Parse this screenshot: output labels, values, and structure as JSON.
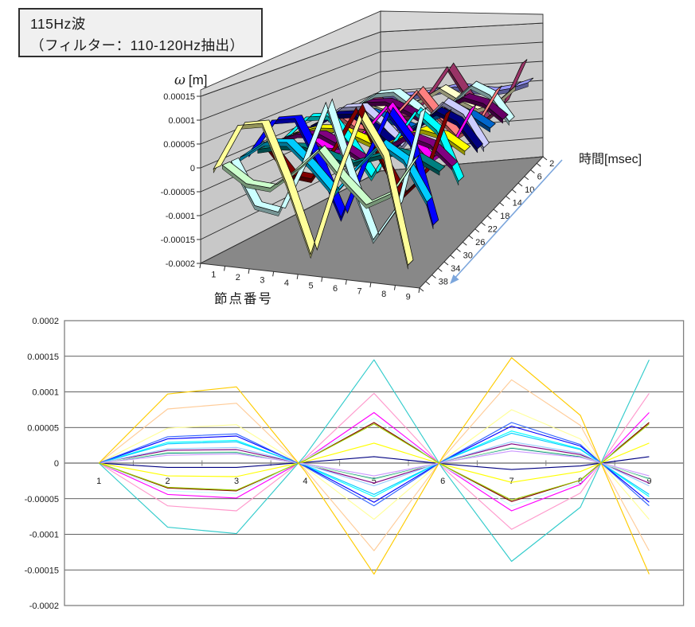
{
  "title_box": {
    "line1": "115Hz波",
    "line2": "（フィルター：110-120Hz抽出）"
  },
  "chart_data": {
    "charts": [
      {
        "id": "wave-3d",
        "type": "3d-line",
        "value_axis_label": "ω[m]",
        "category_axis_label": "節点番号",
        "series_axis_label": "時間[msec]",
        "value_lim": [
          -0.0002,
          0.00015
        ],
        "value_tick_labels": [
          "0.00015",
          "0.0001",
          "0.00005",
          "0",
          "-0.00005",
          "-0.0001",
          "-0.00015",
          "-0.0002"
        ],
        "category_tick_labels": [
          "1",
          "2",
          "3",
          "4",
          "5",
          "6",
          "7",
          "8",
          "9"
        ],
        "series_tick_labels": [
          "2",
          "6",
          "10",
          "14",
          "18",
          "22",
          "26",
          "30",
          "34",
          "38"
        ],
        "grid": true,
        "legend": "none"
      },
      {
        "id": "wave-2d",
        "type": "line",
        "value_lim": [
          -0.0002,
          0.0002
        ],
        "value_tick_labels": [
          "0.0002",
          "0.00015",
          "0.0001",
          "0.00005",
          "0",
          "-0.00005",
          "-0.0001",
          "-0.00015",
          "-0.0002"
        ],
        "category_tick_labels": [
          "1",
          "2",
          "3",
          "4",
          "5",
          "6",
          "7",
          "8",
          "9"
        ],
        "grid": true,
        "legend": "none"
      }
    ],
    "categories": [
      1,
      2,
      3,
      4,
      5,
      6,
      7,
      8,
      9
    ],
    "series_time_unit": "msec",
    "series": [
      {
        "time": 2,
        "line_color": "#000080",
        "fill_color": "#9999FF",
        "values": [
          0,
          -6e-06,
          -6e-06,
          1e-06,
          9e-06,
          -1e-06,
          -9e-06,
          -4e-06,
          9e-06
        ]
      },
      {
        "time": 4,
        "line_color": "#FF00FF",
        "fill_color": "#993366",
        "values": [
          0,
          -4.4e-05,
          -4.9e-05,
          5e-06,
          7.1e-05,
          -4e-06,
          -6.7e-05,
          -3e-05,
          7.1e-05
        ]
      },
      {
        "time": 6,
        "line_color": "#FFFF00",
        "fill_color": "#FFFFCC",
        "values": [
          0,
          -1.8e-05,
          -1.9e-05,
          2e-06,
          2.8e-05,
          -2e-06,
          -2.7e-05,
          -1.2e-05,
          2.8e-05
        ]
      },
      {
        "time": 8,
        "line_color": "#00FFFF",
        "fill_color": "#CCFFFF",
        "values": [
          0,
          2.9e-05,
          3.2e-05,
          -4e-06,
          -4.7e-05,
          3e-06,
          4.5e-05,
          2e-05,
          -4.7e-05
        ]
      },
      {
        "time": 10,
        "line_color": "#800080",
        "fill_color": "#660066",
        "values": [
          0,
          1.8e-05,
          1.9e-05,
          -2e-06,
          -2.8e-05,
          2e-06,
          2.7e-05,
          1.2e-05,
          -2.8e-05
        ]
      },
      {
        "time": 12,
        "line_color": "#800000",
        "fill_color": "#FF8080",
        "values": [
          0,
          -3.5e-05,
          -3.9e-05,
          4e-06,
          5.7e-05,
          -3e-06,
          -5.4e-05,
          -2.4e-05,
          5.7e-05
        ]
      },
      {
        "time": 14,
        "line_color": "#008080",
        "fill_color": "#0066CC",
        "values": [
          0,
          1.4e-05,
          1.5e-05,
          -2e-06,
          -2.2e-05,
          1e-06,
          2.1e-05,
          9e-06,
          -2.2e-05
        ]
      },
      {
        "time": 16,
        "line_color": "#0000FF",
        "fill_color": "#CCCCFF",
        "values": [
          0,
          3.4e-05,
          3.8e-05,
          -4e-06,
          -5.5e-05,
          3e-06,
          5.2e-05,
          2.4e-05,
          -5.5e-05
        ]
      },
      {
        "time": 18,
        "line_color": "#00CCFF",
        "fill_color": "#000080",
        "values": [
          0,
          2.7e-05,
          3e-05,
          -3e-06,
          -4.4e-05,
          3e-06,
          4.2e-05,
          1.9e-05,
          -4.4e-05
        ]
      },
      {
        "time": 20,
        "line_color": "#CCFFFF",
        "fill_color": "#FF00FF",
        "values": [
          0,
          -3.9e-05,
          -4.3e-05,
          5e-06,
          6.3e-05,
          -4e-06,
          -6e-05,
          -2.7e-05,
          6.3e-05
        ]
      },
      {
        "time": 22,
        "line_color": "#CCFFCC",
        "fill_color": "#FFFF00",
        "values": [
          0,
          1.5e-05,
          1.6e-05,
          -2e-06,
          -2.3e-05,
          1e-06,
          2.2e-05,
          1e-05,
          -2.3e-05
        ]
      },
      {
        "time": 24,
        "line_color": "#FFFF99",
        "fill_color": "#00FFFF",
        "values": [
          0,
          4.9e-05,
          5.4e-05,
          -6e-06,
          -7.9e-05,
          4e-06,
          7.5e-05,
          3.4e-05,
          -7.9e-05
        ]
      },
      {
        "time": 26,
        "line_color": "#99CCFF",
        "fill_color": "#800080",
        "values": [
          0,
          2e-05,
          2.2e-05,
          -2e-06,
          -3.2e-05,
          2e-06,
          3e-05,
          1.4e-05,
          -3.2e-05
        ]
      },
      {
        "time": 28,
        "line_color": "#FF99CC",
        "fill_color": "#800000",
        "values": [
          0,
          -6e-05,
          -6.7e-05,
          7e-06,
          9.8e-05,
          -6e-06,
          -9.3e-05,
          -4.2e-05,
          9.8e-05
        ]
      },
      {
        "time": 30,
        "line_color": "#CC99FF",
        "fill_color": "#008080",
        "values": [
          0,
          1.1e-05,
          1.3e-05,
          -1e-06,
          -1.8e-05,
          1e-06,
          1.7e-05,
          8e-06,
          -1.8e-05
        ]
      },
      {
        "time": 32,
        "line_color": "#FFCC99",
        "fill_color": "#0000FF",
        "values": [
          0,
          7.6e-05,
          8.4e-05,
          -9e-06,
          -0.000123,
          7e-06,
          0.000117,
          5.3e-05,
          -0.000123
        ]
      },
      {
        "time": 34,
        "line_color": "#3366FF",
        "fill_color": "#00CCFF",
        "values": [
          0,
          3.7e-05,
          4.1e-05,
          -5e-06,
          -6e-05,
          3e-06,
          5.7e-05,
          2.6e-05,
          -6e-05
        ]
      },
      {
        "time": 36,
        "line_color": "#33CCCC",
        "fill_color": "#CCFFFF",
        "values": [
          0,
          -9e-05,
          -9.9e-05,
          1.1e-05,
          0.000145,
          -8e-06,
          -0.000138,
          -6.2e-05,
          0.000145
        ]
      },
      {
        "time": 38,
        "line_color": "#99CC00",
        "fill_color": "#CCFFCC",
        "values": [
          0,
          -3.4e-05,
          -3.8e-05,
          4e-06,
          5.5e-05,
          -3e-06,
          -5.2e-05,
          -2.4e-05,
          5.5e-05
        ]
      },
      {
        "time": 40,
        "line_color": "#FFCC00",
        "fill_color": "#FFFF99",
        "values": [
          0,
          9.7e-05,
          0.000107,
          -1.2e-05,
          -0.000156,
          9e-06,
          0.000148,
          6.7e-05,
          -0.000156
        ]
      }
    ]
  },
  "colors": {
    "wall": "#C8C8C8",
    "wall_slab": "#D6D6D6",
    "floor": "#888888",
    "wall_line": "#303030",
    "grid_line": "#2b2b2b",
    "plot_border": "#808080",
    "zero_axis": "#808080",
    "tick_text": "#1a1a1a",
    "axis_arrow": "#7CA6DC",
    "title_box_bg": "#F0F0F0",
    "title_box_border": "#2f2f2f"
  }
}
